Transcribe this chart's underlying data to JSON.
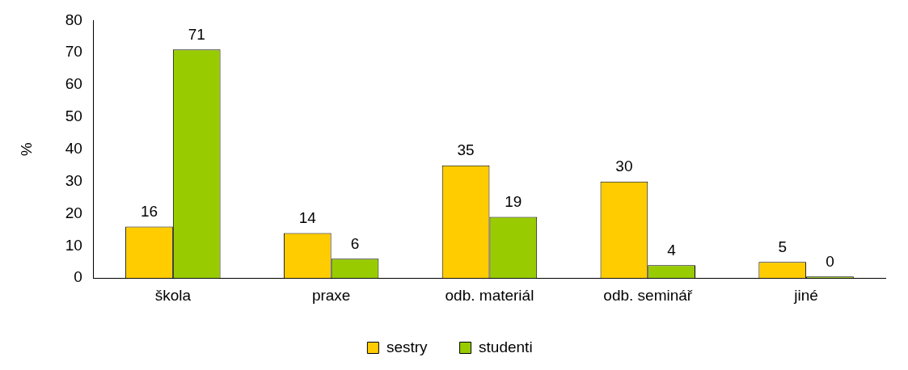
{
  "chart_data": {
    "type": "bar",
    "ylabel": "%",
    "categories": [
      "škola",
      "praxe",
      "odb. materiál",
      "odb. seminář",
      "jiné"
    ],
    "series": [
      {
        "name": "sestry",
        "color": "#ffcc00",
        "values": [
          16,
          14,
          35,
          30,
          5
        ]
      },
      {
        "name": "studenti",
        "color": "#99cc00",
        "values": [
          71,
          6,
          19,
          4,
          0
        ]
      }
    ],
    "ylim": [
      0,
      80
    ],
    "yticks": [
      0,
      10,
      20,
      30,
      40,
      50,
      60,
      70,
      80
    ],
    "grid": false,
    "legend": "bottom",
    "data_labels": true
  }
}
